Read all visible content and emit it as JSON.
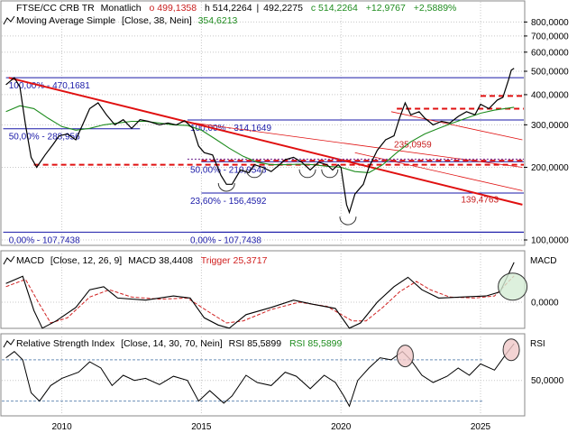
{
  "header": {
    "symbol": "FTSE/CC CRB TR",
    "interval": "Monatlich",
    "open": "o 499,1358",
    "high": "h 514,2264",
    "low": "492,2275",
    "close": "c 514,2264",
    "change_abs": "+12,9767",
    "change_pct": "+2,5889%",
    "ma_label": "Moving Average Simple",
    "ma_params": "[Close, 38, Nein]",
    "ma_value": "354,6213"
  },
  "macd_header": {
    "label": "MACD",
    "params": "[Close, 12, 26, 9]",
    "macd_value": "MACD 38,4408",
    "trigger_value": "Trigger 25,3717",
    "axis_label": "MACD"
  },
  "rsi_header": {
    "label": "Relative Strength Index",
    "params": "[Close, 14, 30, 70, Nein]",
    "rsi_value": "RSI 85,5899",
    "rsi_value2": "RSI 85,5899",
    "axis_label": "RSI"
  },
  "fib_labels": [
    {
      "text": "100,00% - 470,1681",
      "price": 470.17
    },
    {
      "text": "50,00% - 288,956",
      "price": 288.956
    },
    {
      "text": "100,00% - 314,1649",
      "price": 314.16
    },
    {
      "text": "50,00% - 210,9543",
      "price": 210.95
    },
    {
      "text": "23,60% - 156,4592",
      "price": 156.46
    },
    {
      "text": "0,00% - 107,7438",
      "price": 107.74
    },
    {
      "text": "0,00% - 107,7438",
      "price": 107.74
    }
  ],
  "red_labels": [
    {
      "text": "235,0959",
      "price": 235.1
    },
    {
      "text": "139,4763",
      "price": 139.48
    }
  ],
  "colors": {
    "price": "#000000",
    "ma": "#1e8c1e",
    "fib": "#1a1aa8",
    "trend": "#e01010",
    "trigger": "#d02020",
    "highlight_fill": "#f0c8c8",
    "highlight_green": "#d4ecd4",
    "grid": "#c8c8c8"
  },
  "chart_data": [
    {
      "type": "line",
      "panel": "price",
      "log_scale": true,
      "y_ticks": [
        {
          "value": 100000,
          "label": "100,0000"
        },
        {
          "value": 200000,
          "label": "200,0000"
        },
        {
          "value": 300000,
          "label": "300,0000"
        },
        {
          "value": 400000,
          "label": "400,0000"
        },
        {
          "value": 500000,
          "label": "500,0000"
        },
        {
          "value": 600000,
          "label": "600,0000"
        },
        {
          "value": 700000,
          "label": "700,0000"
        },
        {
          "value": 800000,
          "label": "800,0000"
        }
      ],
      "x_ticks": [
        {
          "year": 2010,
          "label": "2010"
        },
        {
          "year": 2015,
          "label": "2015"
        },
        {
          "year": 2020,
          "label": "2020"
        },
        {
          "year": 2025,
          "label": "2025"
        }
      ],
      "series": [
        {
          "points": [
            [
              2008.0,
              440
            ],
            [
              2008.3,
              470
            ],
            [
              2008.5,
              430
            ],
            [
              2008.7,
              300
            ],
            [
              2008.9,
              220
            ],
            [
              2009.1,
              200
            ],
            [
              2009.4,
              225
            ],
            [
              2009.7,
              250
            ],
            [
              2009.9,
              270
            ],
            [
              2010.2,
              275
            ],
            [
              2010.5,
              260
            ],
            [
              2010.8,
              310
            ],
            [
              2011.0,
              350
            ],
            [
              2011.3,
              370
            ],
            [
              2011.6,
              330
            ],
            [
              2011.9,
              300
            ],
            [
              2012.2,
              315
            ],
            [
              2012.5,
              290
            ],
            [
              2012.8,
              315
            ],
            [
              2013.1,
              310
            ],
            [
              2013.5,
              300
            ],
            [
              2013.8,
              305
            ],
            [
              2014.1,
              300
            ],
            [
              2014.4,
              312
            ],
            [
              2014.7,
              290
            ],
            [
              2014.9,
              245
            ],
            [
              2015.1,
              230
            ],
            [
              2015.4,
              225
            ],
            [
              2015.7,
              185
            ],
            [
              2015.9,
              170
            ],
            [
              2016.1,
              170
            ],
            [
              2016.4,
              195
            ],
            [
              2016.7,
              190
            ],
            [
              2016.9,
              205
            ],
            [
              2017.2,
              200
            ],
            [
              2017.5,
              192
            ],
            [
              2017.8,
              205
            ],
            [
              2018.0,
              215
            ],
            [
              2018.3,
              220
            ],
            [
              2018.6,
              210
            ],
            [
              2018.9,
              195
            ],
            [
              2019.2,
              210
            ],
            [
              2019.5,
              205
            ],
            [
              2019.7,
              195
            ],
            [
              2019.9,
              205
            ],
            [
              2020.0,
              200
            ],
            [
              2020.2,
              140
            ],
            [
              2020.3,
              130
            ],
            [
              2020.5,
              155
            ],
            [
              2020.8,
              170
            ],
            [
              2021.0,
              200
            ],
            [
              2021.3,
              235
            ],
            [
              2021.6,
              260
            ],
            [
              2021.9,
              270
            ],
            [
              2022.1,
              320
            ],
            [
              2022.3,
              370
            ],
            [
              2022.5,
              330
            ],
            [
              2022.8,
              340
            ],
            [
              2023.0,
              320
            ],
            [
              2023.3,
              300
            ],
            [
              2023.6,
              310
            ],
            [
              2023.9,
              305
            ],
            [
              2024.2,
              325
            ],
            [
              2024.5,
              340
            ],
            [
              2024.8,
              330
            ],
            [
              2025.0,
              365
            ],
            [
              2025.3,
              350
            ],
            [
              2025.6,
              380
            ],
            [
              2025.8,
              390
            ],
            [
              2026.0,
              460
            ],
            [
              2026.1,
              505
            ],
            [
              2026.2,
              514
            ]
          ]
        },
        {
          "name": "Moving Average Simple",
          "points": [
            [
              2008.0,
              340
            ],
            [
              2008.5,
              360
            ],
            [
              2009.0,
              350
            ],
            [
              2009.5,
              320
            ],
            [
              2010.0,
              295
            ],
            [
              2010.5,
              285
            ],
            [
              2011.0,
              290
            ],
            [
              2011.5,
              300
            ],
            [
              2012.0,
              305
            ],
            [
              2012.5,
              310
            ],
            [
              2013.0,
              310
            ],
            [
              2013.5,
              305
            ],
            [
              2014.0,
              300
            ],
            [
              2014.5,
              298
            ],
            [
              2015.0,
              285
            ],
            [
              2015.5,
              262
            ],
            [
              2016.0,
              240
            ],
            [
              2016.5,
              222
            ],
            [
              2017.0,
              210
            ],
            [
              2017.5,
              205
            ],
            [
              2018.0,
              205
            ],
            [
              2018.5,
              206
            ],
            [
              2019.0,
              205
            ],
            [
              2019.5,
              202
            ],
            [
              2020.0,
              200
            ],
            [
              2020.5,
              192
            ],
            [
              2021.0,
              190
            ],
            [
              2021.5,
              205
            ],
            [
              2022.0,
              230
            ],
            [
              2022.5,
              255
            ],
            [
              2023.0,
              275
            ],
            [
              2023.5,
              290
            ],
            [
              2024.0,
              305
            ],
            [
              2024.5,
              320
            ],
            [
              2025.0,
              335
            ],
            [
              2025.5,
              345
            ],
            [
              2026.2,
              354.62
            ]
          ]
        }
      ]
    },
    {
      "type": "line",
      "panel": "macd",
      "y_ticks": [
        {
          "value": 0,
          "label": "0,0000"
        }
      ],
      "series": [
        {
          "name": "MACD",
          "points": [
            [
              2008.0,
              18
            ],
            [
              2008.6,
              25
            ],
            [
              2009.0,
              -8
            ],
            [
              2009.3,
              -25
            ],
            [
              2009.8,
              -18
            ],
            [
              2010.5,
              -5
            ],
            [
              2011.0,
              12
            ],
            [
              2011.5,
              15
            ],
            [
              2012.0,
              4
            ],
            [
              2013.0,
              2
            ],
            [
              2014.0,
              6
            ],
            [
              2014.6,
              4
            ],
            [
              2015.1,
              -15
            ],
            [
              2015.6,
              -22
            ],
            [
              2016.0,
              -25
            ],
            [
              2016.6,
              -12
            ],
            [
              2017.5,
              -5
            ],
            [
              2018.3,
              2
            ],
            [
              2019.0,
              -2
            ],
            [
              2019.8,
              -6
            ],
            [
              2020.3,
              -25
            ],
            [
              2020.7,
              -20
            ],
            [
              2021.3,
              0
            ],
            [
              2021.9,
              15
            ],
            [
              2022.4,
              24
            ],
            [
              2022.9,
              12
            ],
            [
              2023.5,
              4
            ],
            [
              2024.3,
              5
            ],
            [
              2025.2,
              6
            ],
            [
              2025.7,
              10
            ],
            [
              2026.2,
              38.44
            ]
          ]
        },
        {
          "name": "Trigger",
          "points": [
            [
              2008.0,
              15
            ],
            [
              2008.7,
              22
            ],
            [
              2009.2,
              -2
            ],
            [
              2009.6,
              -20
            ],
            [
              2010.2,
              -15
            ],
            [
              2011.0,
              5
            ],
            [
              2011.7,
              12
            ],
            [
              2012.5,
              5
            ],
            [
              2013.5,
              3
            ],
            [
              2014.5,
              4
            ],
            [
              2015.3,
              -10
            ],
            [
              2015.9,
              -20
            ],
            [
              2016.5,
              -18
            ],
            [
              2017.5,
              -7
            ],
            [
              2018.5,
              0
            ],
            [
              2019.5,
              -4
            ],
            [
              2020.4,
              -18
            ],
            [
              2020.9,
              -18
            ],
            [
              2021.5,
              -5
            ],
            [
              2022.1,
              10
            ],
            [
              2022.7,
              20
            ],
            [
              2023.2,
              12
            ],
            [
              2023.9,
              5
            ],
            [
              2024.8,
              4
            ],
            [
              2025.5,
              6
            ],
            [
              2026.2,
              25.37
            ]
          ]
        }
      ]
    },
    {
      "type": "line",
      "panel": "rsi",
      "y_ticks": [
        {
          "value": 50,
          "label": "50,0000"
        }
      ],
      "series": [
        {
          "name": "Relative Strength Index",
          "points": [
            [
              2008.0,
              72
            ],
            [
              2008.3,
              78
            ],
            [
              2008.6,
              70
            ],
            [
              2008.9,
              38
            ],
            [
              2009.2,
              30
            ],
            [
              2009.6,
              45
            ],
            [
              2010.0,
              52
            ],
            [
              2010.6,
              58
            ],
            [
              2011.0,
              68
            ],
            [
              2011.4,
              62
            ],
            [
              2011.8,
              45
            ],
            [
              2012.2,
              55
            ],
            [
              2012.6,
              50
            ],
            [
              2013.0,
              52
            ],
            [
              2013.5,
              46
            ],
            [
              2014.0,
              54
            ],
            [
              2014.5,
              50
            ],
            [
              2014.9,
              30
            ],
            [
              2015.3,
              40
            ],
            [
              2015.8,
              28
            ],
            [
              2016.1,
              35
            ],
            [
              2016.6,
              55
            ],
            [
              2017.0,
              48
            ],
            [
              2017.5,
              45
            ],
            [
              2018.0,
              58
            ],
            [
              2018.4,
              54
            ],
            [
              2018.9,
              42
            ],
            [
              2019.4,
              55
            ],
            [
              2019.8,
              48
            ],
            [
              2020.1,
              35
            ],
            [
              2020.3,
              25
            ],
            [
              2020.6,
              50
            ],
            [
              2021.0,
              62
            ],
            [
              2021.4,
              72
            ],
            [
              2021.8,
              70
            ],
            [
              2022.2,
              78
            ],
            [
              2022.5,
              70
            ],
            [
              2022.9,
              55
            ],
            [
              2023.3,
              48
            ],
            [
              2023.8,
              54
            ],
            [
              2024.2,
              62
            ],
            [
              2024.6,
              55
            ],
            [
              2025.0,
              66
            ],
            [
              2025.5,
              60
            ],
            [
              2025.9,
              75
            ],
            [
              2026.2,
              85.59
            ]
          ]
        }
      ]
    }
  ]
}
